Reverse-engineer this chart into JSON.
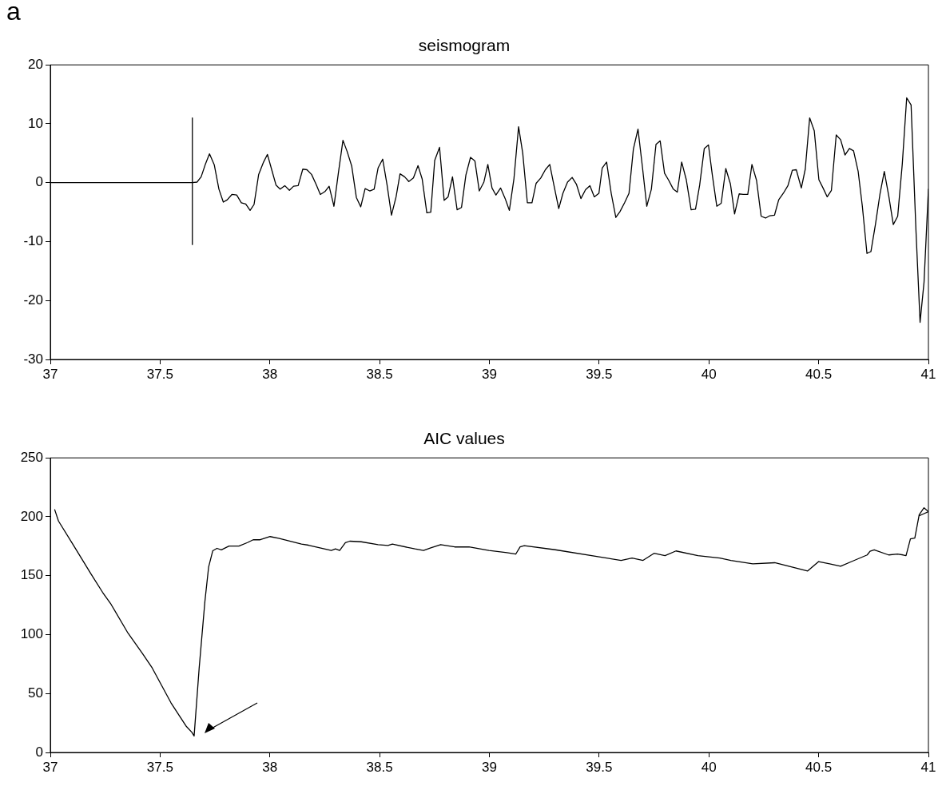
{
  "chart_data": [
    {
      "type": "line",
      "title": "seismogram",
      "annotations": [
        "a"
      ],
      "xlim": [
        37,
        41
      ],
      "xticks": [
        37,
        37.5,
        38,
        38.5,
        39,
        39.5,
        40,
        40.5,
        41
      ],
      "ylim": [
        -30,
        20
      ],
      "yticks": [
        -30,
        -20,
        -10,
        0,
        10,
        20
      ],
      "grid": false,
      "legend": false,
      "marker": "none",
      "series": [
        {
          "color": "#000000",
          "x": [
            37,
            37.647,
            37.668,
            37.687,
            37.705,
            37.725,
            37.747,
            37.768,
            37.788,
            37.806,
            37.827,
            37.849,
            37.87,
            37.89,
            37.91,
            37.928,
            37.949,
            37.97,
            37.989,
            38.01,
            38.028,
            38.047,
            38.068,
            38.089,
            38.108,
            38.129,
            38.15,
            38.169,
            38.19,
            38.211,
            38.23,
            38.251,
            38.27,
            38.292,
            38.312,
            38.333,
            38.352,
            38.373,
            38.394,
            38.414,
            38.434,
            38.455,
            38.475,
            38.493,
            38.514,
            38.534,
            38.554,
            38.575,
            38.593,
            38.614,
            38.633,
            38.654,
            38.675,
            38.694,
            38.715,
            38.733,
            38.751,
            38.773,
            38.794,
            38.812,
            38.832,
            38.853,
            38.873,
            38.893,
            38.914,
            38.934,
            38.954,
            38.975,
            38.993,
            39.012,
            39.03,
            39.051,
            39.072,
            39.091,
            39.112,
            39.133,
            39.152,
            39.173,
            39.194,
            39.213,
            39.234,
            39.255,
            39.275,
            39.295,
            39.316,
            39.335,
            39.356,
            39.377,
            39.397,
            39.417,
            39.438,
            39.458,
            39.478,
            39.499,
            39.514,
            39.534,
            39.555,
            39.576,
            39.595,
            39.616,
            39.636,
            39.656,
            39.677,
            39.698,
            39.717,
            39.738,
            39.759,
            39.778,
            39.798,
            39.817,
            39.838,
            39.856,
            39.876,
            39.897,
            39.919,
            39.939,
            39.958,
            39.979,
            39.998,
            40.016,
            40.036,
            40.056,
            40.077,
            40.098,
            40.117,
            40.138,
            40.156,
            40.177,
            40.196,
            40.217,
            40.238,
            40.258,
            40.278,
            40.299,
            40.318,
            40.339,
            40.36,
            40.38,
            40.398,
            40.421,
            40.439,
            40.459,
            40.48,
            40.501,
            40.52,
            40.539,
            40.558,
            40.58,
            40.6,
            40.62,
            40.64,
            40.659,
            40.68,
            40.699,
            40.72,
            40.738,
            40.759,
            40.779,
            40.799,
            40.82,
            40.84,
            40.86,
            40.881,
            40.901,
            40.921,
            40.943,
            40.962,
            40.98,
            41
          ],
          "values": [
            0,
            0,
            0.1,
            1.0,
            3.0,
            4.9,
            3.0,
            -1.1,
            -3.3,
            -2.9,
            -2.0,
            -2.1,
            -3.4,
            -3.6,
            -4.7,
            -3.7,
            1.4,
            3.4,
            4.8,
            2.0,
            -0.4,
            -1.1,
            -0.5,
            -1.3,
            -0.6,
            -0.5,
            2.3,
            2.2,
            1.4,
            -0.3,
            -2.0,
            -1.5,
            -0.6,
            -4.0,
            1.6,
            7.2,
            5.3,
            2.8,
            -2.5,
            -4.1,
            -1.0,
            -1.4,
            -1.1,
            2.5,
            4.0,
            -0.4,
            -5.5,
            -2.4,
            1.5,
            1.0,
            0.2,
            0.8,
            2.9,
            0.6,
            -5.1,
            -5.0,
            3.8,
            6.0,
            -3.0,
            -2.4,
            1.0,
            -4.6,
            -4.2,
            1.3,
            4.3,
            3.7,
            -1.4,
            0.1,
            3.1,
            -0.9,
            -2.1,
            -0.9,
            -2.7,
            -4.7,
            0.7,
            9.5,
            5.0,
            -3.4,
            -3.4,
            -0.1,
            0.8,
            2.2,
            3.1,
            -0.6,
            -4.4,
            -1.8,
            0.1,
            0.9,
            -0.3,
            -2.7,
            -1.2,
            -0.5,
            -2.4,
            -1.8,
            2.5,
            3.5,
            -1.8,
            -5.9,
            -4.9,
            -3.4,
            -1.8,
            5.7,
            9.1,
            2.4,
            -4.0,
            -1.1,
            6.5,
            7.1,
            1.6,
            0.4,
            -1.1,
            -1.6,
            3.5,
            0.5,
            -4.6,
            -4.5,
            -0.4,
            5.8,
            6.4,
            1.2,
            -4.0,
            -3.5,
            2.4,
            -0.2,
            -5.3,
            -1.9,
            -2.0,
            -2.0,
            3.1,
            0.4,
            -5.7,
            -6.0,
            -5.6,
            -5.5,
            -2.9,
            -1.8,
            -0.5,
            2.1,
            2.2,
            -0.9,
            2.3,
            11.0,
            8.8,
            0.5,
            -0.9,
            -2.4,
            -1.3,
            8.1,
            7.3,
            4.7,
            5.8,
            5.4,
            1.9,
            -4.0,
            -12.0,
            -11.7,
            -7.0,
            -2.0,
            1.9,
            -2.4,
            -7.1,
            -5.7,
            3.2,
            14.4,
            13.2,
            -7.9,
            -23.7,
            -16.9,
            -1.1
          ]
        },
        {
          "type": "line",
          "color": "#000000",
          "x": [
            37.647,
            37.647
          ],
          "values": [
            11,
            -10.5
          ]
        }
      ]
    },
    {
      "type": "line",
      "title": "AIC values",
      "xlim": [
        37,
        41
      ],
      "xticks": [
        37,
        37.5,
        38,
        38.5,
        39,
        39.5,
        40,
        40.5,
        41
      ],
      "ylim": [
        0,
        250
      ],
      "yticks": [
        0,
        50,
        100,
        150,
        200,
        250
      ],
      "grid": false,
      "legend": false,
      "marker": "none",
      "series": [
        {
          "color": "#000000",
          "x": [
            37.02,
            37.037,
            37.102,
            37.141,
            37.186,
            37.238,
            37.277,
            37.354,
            37.419,
            37.464,
            37.55,
            37.62,
            37.645,
            37.655,
            37.678,
            37.704,
            37.721,
            37.74,
            37.759,
            37.779,
            37.814,
            37.859,
            37.898,
            37.924,
            37.956,
            38.001,
            38.04,
            38.144,
            38.176,
            38.28,
            38.299,
            38.318,
            38.344,
            38.364,
            38.416,
            38.493,
            38.538,
            38.558,
            38.661,
            38.7,
            38.733,
            38.778,
            38.842,
            38.907,
            38.998,
            39.08,
            39.12,
            39.14,
            39.159,
            39.3,
            39.5,
            39.6,
            39.65,
            39.7,
            39.75,
            39.8,
            39.85,
            39.95,
            40.0,
            40.05,
            40.1,
            40.2,
            40.3,
            40.45,
            40.5,
            40.55,
            40.6,
            40.65,
            40.721,
            40.734,
            40.753,
            40.819,
            40.859,
            40.885,
            40.898,
            40.918,
            40.938,
            40.958,
            40.98,
            41.0,
            40.96
          ],
          "values": [
            206,
            196.4,
            176.8,
            165,
            151.2,
            135.9,
            125.6,
            101.2,
            84.2,
            71.7,
            42,
            22,
            17,
            14,
            71.7,
            128,
            157.3,
            171.2,
            173.2,
            171.9,
            175.1,
            175.1,
            178.1,
            180.5,
            180.5,
            183.2,
            181.7,
            176.8,
            175.9,
            171.4,
            172.7,
            171.4,
            178.1,
            179.3,
            178.8,
            176.4,
            175.6,
            176.8,
            172.7,
            171.4,
            173.6,
            176.4,
            174.4,
            174.4,
            171.4,
            169.5,
            168.3,
            174.5,
            175.5,
            172,
            166,
            163,
            165,
            163,
            169,
            167,
            171,
            167,
            166,
            165,
            163,
            160,
            161,
            154,
            162,
            160,
            158,
            162,
            167.6,
            170.8,
            172,
            167.6,
            168.3,
            167.6,
            167,
            181.2,
            182,
            201.8,
            207.6,
            204.3,
            201
          ]
        }
      ]
    }
  ]
}
